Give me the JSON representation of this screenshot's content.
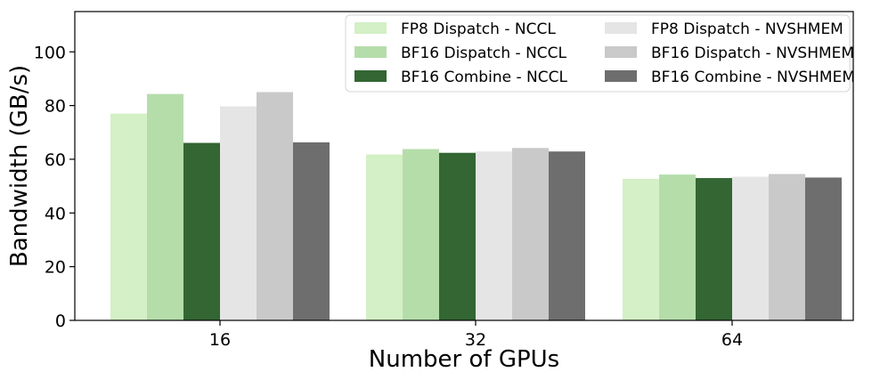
{
  "chart_data": {
    "type": "bar",
    "title": "",
    "xlabel": "Number of GPUs",
    "ylabel": "Bandwidth (GB/s)",
    "categories": [
      "16",
      "32",
      "64"
    ],
    "ylim": [
      0,
      115
    ],
    "yticks": [
      0,
      20,
      40,
      60,
      80,
      100
    ],
    "grid": false,
    "legend": {
      "placement": "top-right",
      "columns": 2
    },
    "series": [
      {
        "name": "FP8 Dispatch - NCCL",
        "color": "#d4f0c6",
        "values": [
          77,
          61.8,
          52.7
        ]
      },
      {
        "name": "BF16 Dispatch - NCCL",
        "color": "#b5ddaa",
        "values": [
          84.3,
          63.8,
          54.3
        ]
      },
      {
        "name": "BF16 Combine - NCCL",
        "color": "#336633",
        "values": [
          66.1,
          62.4,
          53
        ]
      },
      {
        "name": "FP8 Dispatch - NVSHMEM",
        "color": "#e5e5e5",
        "values": [
          79.7,
          62.9,
          53.5
        ]
      },
      {
        "name": "BF16 Dispatch - NVSHMEM",
        "color": "#c9c9c9",
        "values": [
          85,
          64.2,
          54.5
        ]
      },
      {
        "name": "BF16 Combine - NVSHMEM",
        "color": "#6e6e6e",
        "values": [
          66.3,
          62.9,
          53.2
        ]
      }
    ]
  }
}
